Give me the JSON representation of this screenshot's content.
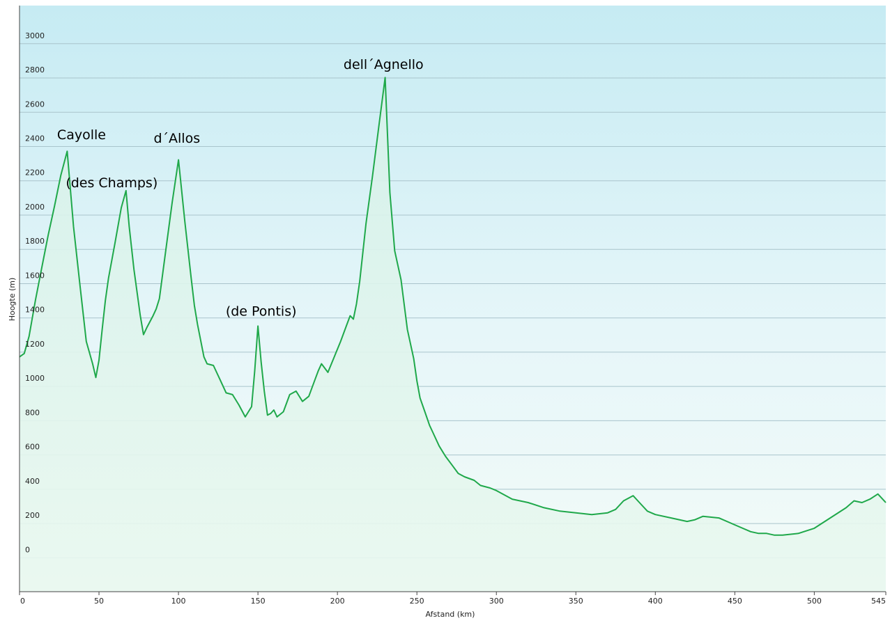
{
  "chart_data": {
    "type": "area",
    "xlabel": "Afstand  (km)",
    "ylabel": "Hoogte (m)",
    "xlim": [
      0,
      545
    ],
    "ylim": [
      -230,
      3190
    ],
    "grid": true,
    "colors": {
      "line": "#1fa84a",
      "fill_top": "#d9f2f5",
      "bg_top": "#c8ecf4",
      "bg_bottom": "#f2faf8",
      "grid": "#a9c4cc"
    },
    "x_ticks": [
      {
        "value": 0,
        "label": "0"
      },
      {
        "value": 50,
        "label": "50"
      },
      {
        "value": 100,
        "label": "100"
      },
      {
        "value": 150,
        "label": "150"
      },
      {
        "value": 200,
        "label": "200"
      },
      {
        "value": 250,
        "label": "250"
      },
      {
        "value": 300,
        "label": "300"
      },
      {
        "value": 350,
        "label": "350"
      },
      {
        "value": 400,
        "label": "400"
      },
      {
        "value": 450,
        "label": "450"
      },
      {
        "value": 500,
        "label": "500"
      },
      {
        "value": 545,
        "label": "545"
      }
    ],
    "y_ticks": [
      {
        "value": 0,
        "label": "0"
      },
      {
        "value": 200,
        "label": "200"
      },
      {
        "value": 400,
        "label": "400"
      },
      {
        "value": 600,
        "label": "600"
      },
      {
        "value": 800,
        "label": "800"
      },
      {
        "value": 1000,
        "label": "1000"
      },
      {
        "value": 1200,
        "label": "1200"
      },
      {
        "value": 1400,
        "label": "1400"
      },
      {
        "value": 1600,
        "label": "1600"
      },
      {
        "value": 1800,
        "label": "1800"
      },
      {
        "value": 2000,
        "label": "2000"
      },
      {
        "value": 2200,
        "label": "2200"
      },
      {
        "value": 2400,
        "label": "2400"
      },
      {
        "value": 2600,
        "label": "2600"
      },
      {
        "value": 2800,
        "label": "2800"
      },
      {
        "value": 3000,
        "label": "3000"
      }
    ],
    "annotations": [
      {
        "text": "Cayolle",
        "x": 39,
        "y": 2410
      },
      {
        "text": "(des Champs)",
        "x": 58,
        "y": 2130
      },
      {
        "text": "d´Allos",
        "x": 99,
        "y": 2390
      },
      {
        "text": "(de Pontis)",
        "x": 152,
        "y": 1380
      },
      {
        "text": "dell´Agnello",
        "x": 229,
        "y": 2820
      }
    ],
    "series": [
      {
        "x": [
          0,
          3,
          6,
          10,
          14,
          18,
          22,
          26,
          30,
          34,
          38,
          42,
          46,
          48,
          50,
          52,
          54,
          56,
          60,
          64,
          67,
          69,
          72,
          76,
          78,
          80,
          84,
          86,
          88,
          92,
          96,
          100,
          104,
          108,
          110,
          112,
          116,
          118,
          122,
          126,
          130,
          134,
          138,
          142,
          146,
          148,
          150,
          152,
          154,
          156,
          158,
          160,
          162,
          166,
          170,
          174,
          178,
          182,
          186,
          188,
          190,
          194,
          198,
          202,
          206,
          208,
          210,
          212,
          214,
          218,
          222,
          226,
          230,
          233,
          236,
          240,
          244,
          248,
          250,
          252,
          255,
          258,
          260,
          264,
          268,
          272,
          276,
          280,
          286,
          290,
          296,
          300,
          310,
          320,
          330,
          340,
          350,
          360,
          370,
          375,
          380,
          386,
          390,
          395,
          400,
          410,
          420,
          425,
          430,
          440,
          450,
          460,
          465,
          470,
          475,
          480,
          490,
          500,
          510,
          520,
          525,
          530,
          535,
          540,
          545
        ],
        "y": [
          1140,
          1160,
          1260,
          1470,
          1660,
          1850,
          2020,
          2200,
          2340,
          1900,
          1560,
          1230,
          1100,
          1020,
          1120,
          1300,
          1470,
          1600,
          1800,
          2010,
          2110,
          1900,
          1650,
          1380,
          1270,
          1310,
          1380,
          1420,
          1480,
          1760,
          2040,
          2290,
          1930,
          1600,
          1440,
          1330,
          1140,
          1100,
          1090,
          1010,
          930,
          920,
          860,
          790,
          850,
          1060,
          1320,
          1110,
          940,
          800,
          810,
          830,
          790,
          820,
          920,
          940,
          880,
          910,
          1010,
          1060,
          1100,
          1050,
          1140,
          1230,
          1330,
          1380,
          1360,
          1450,
          1580,
          1920,
          2190,
          2480,
          2770,
          2100,
          1760,
          1590,
          1300,
          1130,
          1000,
          900,
          820,
          740,
          700,
          620,
          560,
          510,
          460,
          440,
          420,
          390,
          375,
          360,
          310,
          290,
          260,
          240,
          230,
          220,
          230,
          250,
          300,
          330,
          290,
          240,
          220,
          200,
          180,
          190,
          210,
          200,
          160,
          120,
          110,
          110,
          100,
          100,
          110,
          140,
          200,
          260,
          300,
          290,
          310,
          340,
          290
        ]
      }
    ]
  }
}
